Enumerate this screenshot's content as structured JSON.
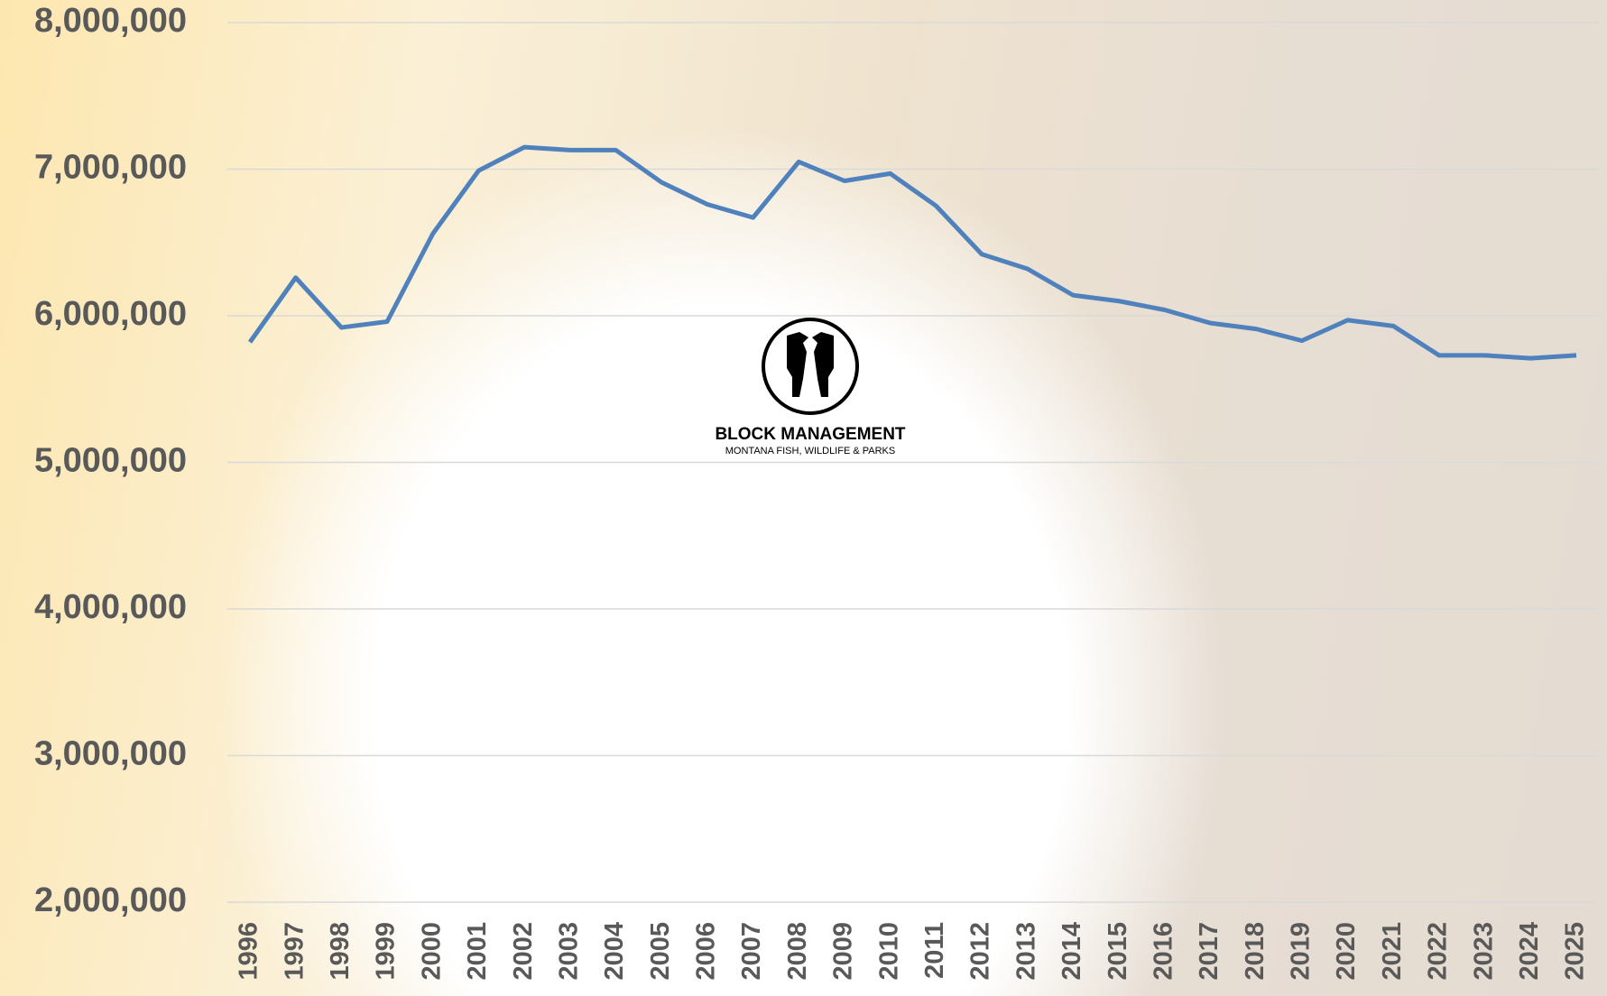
{
  "chart_data": {
    "type": "line",
    "categories": [
      "1996",
      "1997",
      "1998",
      "1999",
      "2000",
      "2001",
      "2002",
      "2003",
      "2004",
      "2005",
      "2006",
      "2007",
      "2008",
      "2009",
      "2010",
      "2011",
      "2012",
      "2013",
      "2014",
      "2015",
      "2016",
      "2017",
      "2018",
      "2019",
      "2020",
      "2021",
      "2022",
      "2023",
      "2024",
      "2025"
    ],
    "series": [
      {
        "color": "#4f81bd",
        "values": [
          5820000,
          6260000,
          5920000,
          5960000,
          6560000,
          6990000,
          7150000,
          7130000,
          7130000,
          6910000,
          6760000,
          6670000,
          7050000,
          6920000,
          6970000,
          6750000,
          6420000,
          6320000,
          6140000,
          6100000,
          6040000,
          5950000,
          5910000,
          5830000,
          5970000,
          5930000,
          5730000,
          5730000,
          5710000,
          5730000
        ]
      }
    ],
    "ylim": [
      2000000,
      8000000
    ],
    "yticks": [
      {
        "value": 2000000,
        "label": "2,000,000"
      },
      {
        "value": 3000000,
        "label": "3,000,000"
      },
      {
        "value": 4000000,
        "label": "4,000,000"
      },
      {
        "value": 5000000,
        "label": "5,000,000"
      },
      {
        "value": 6000000,
        "label": "6,000,000"
      },
      {
        "value": 7000000,
        "label": "7,000,000"
      },
      {
        "value": 8000000,
        "label": "8,000,000"
      }
    ],
    "grid": true
  },
  "logo": {
    "title": "BLOCK MANAGEMENT",
    "subtitle": "MONTANA FISH, WILDLIFE & PARKS"
  }
}
